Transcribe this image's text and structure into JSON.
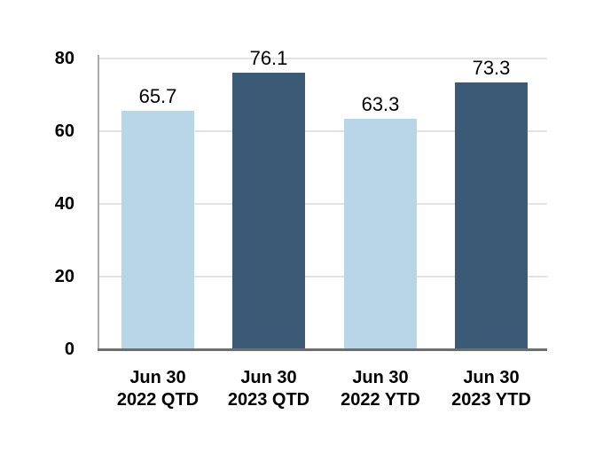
{
  "chart_data": {
    "type": "bar",
    "title": "",
    "xlabel": "",
    "ylabel": "",
    "categories": [
      [
        "Jun 30",
        "2022 QTD"
      ],
      [
        "Jun 30",
        "2023 QTD"
      ],
      [
        "Jun 30",
        "2022 YTD"
      ],
      [
        "Jun 30",
        "2023 YTD"
      ]
    ],
    "values": [
      65.7,
      76.1,
      63.3,
      73.3
    ],
    "data_labels": [
      "65.7",
      "76.1",
      "63.3",
      "73.3"
    ],
    "bar_colors": [
      "#B9D5E8",
      "#3B5A75",
      "#B9D5E8",
      "#3B5A75"
    ],
    "ylim": [
      0,
      80
    ],
    "yticks": [
      0,
      20,
      40,
      60,
      80
    ],
    "grid": true,
    "legend_position": "none",
    "colors": {
      "light_series": "#B9D5E8",
      "dark_series": "#3B5A75",
      "gridline": "#E3E3E3",
      "y_axis_line": "#ABABAB",
      "x_axis_line": "#6E6E6E",
      "label_text": "#000000",
      "background": "#FFFFFF"
    }
  }
}
